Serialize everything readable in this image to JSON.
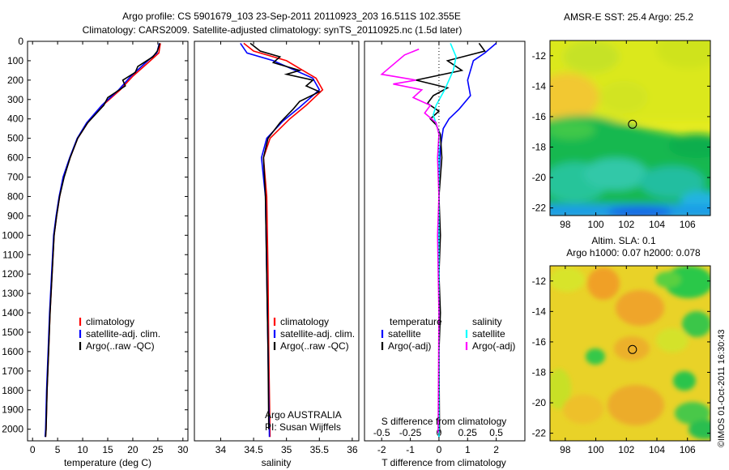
{
  "header": {
    "line1": "Argo profile: CS 5901679_103 23-Sep-2011 20110923_203 16.511S 102.355E",
    "line2": "Climatology: CARS2009. Satellite-adjusted climatology: synTS_20110925.nc (1.5d later)"
  },
  "credit": "©IMOS 01-Oct-2011 16:30:43",
  "colors": {
    "climatology": "#ff0000",
    "satellite": "#0000ff",
    "argo": "#000000",
    "salinity_satellite": "#00ffff",
    "salinity_argo": "#ff00ff"
  },
  "chart_data": [
    {
      "type": "line",
      "xlabel": "temperature (deg C)",
      "ylim": [
        2060,
        0
      ],
      "xlim": [
        -1,
        31
      ],
      "xticks": [
        0,
        5,
        10,
        15,
        20,
        25,
        30
      ],
      "yticks": [
        0,
        100,
        200,
        300,
        400,
        500,
        600,
        700,
        800,
        900,
        1000,
        1100,
        1200,
        1300,
        1400,
        1500,
        1600,
        1700,
        1800,
        1900,
        2000
      ],
      "legend": [
        "climatology",
        "satellite-adj. clim.",
        "Argo(..raw -QC)"
      ],
      "series": [
        {
          "name": "climatology",
          "color": "#ff0000",
          "points": [
            [
              25.5,
              10
            ],
            [
              25.2,
              60
            ],
            [
              23.5,
              100
            ],
            [
              20,
              180
            ],
            [
              17.5,
              250
            ],
            [
              14,
              330
            ],
            [
              11,
              420
            ],
            [
              9,
              500
            ],
            [
              7.5,
              600
            ],
            [
              6.2,
              700
            ],
            [
              5.4,
              800
            ],
            [
              4.8,
              900
            ],
            [
              4.3,
              1000
            ],
            [
              3.9,
              1200
            ],
            [
              3.5,
              1400
            ],
            [
              3.2,
              1600
            ],
            [
              2.9,
              1800
            ],
            [
              2.7,
              2000
            ],
            [
              2.6,
              2040
            ]
          ]
        },
        {
          "name": "satellite-adj. clim.",
          "color": "#0000ff",
          "points": [
            [
              25.3,
              10
            ],
            [
              24.8,
              60
            ],
            [
              23,
              100
            ],
            [
              19.6,
              180
            ],
            [
              17.2,
              250
            ],
            [
              13.8,
              330
            ],
            [
              10.8,
              420
            ],
            [
              8.9,
              500
            ],
            [
              7.4,
              600
            ],
            [
              6.1,
              700
            ],
            [
              5.3,
              800
            ],
            [
              4.7,
              900
            ],
            [
              4.2,
              1000
            ],
            [
              3.8,
              1200
            ],
            [
              3.4,
              1400
            ],
            [
              3.1,
              1600
            ],
            [
              2.8,
              1800
            ],
            [
              2.6,
              2000
            ],
            [
              2.5,
              2040
            ]
          ]
        },
        {
          "name": "Argo(..raw -QC)",
          "color": "#000000",
          "points": [
            [
              25.4,
              10
            ],
            [
              24.9,
              50
            ],
            [
              24,
              80
            ],
            [
              21,
              130
            ],
            [
              20.5,
              160
            ],
            [
              18,
              200
            ],
            [
              18.5,
              230
            ],
            [
              15,
              290
            ],
            [
              14.2,
              330
            ],
            [
              11,
              420
            ],
            [
              9,
              500
            ],
            [
              7.5,
              600
            ],
            [
              6.3,
              700
            ],
            [
              5.4,
              800
            ],
            [
              4.8,
              900
            ],
            [
              4.3,
              1000
            ],
            [
              3.9,
              1200
            ],
            [
              3.5,
              1400
            ],
            [
              3.2,
              1600
            ],
            [
              2.9,
              1800
            ],
            [
              2.7,
              2000
            ],
            [
              2.6,
              2040
            ]
          ]
        }
      ]
    },
    {
      "type": "line",
      "xlabel": "salinity",
      "ylim": [
        2060,
        0
      ],
      "xlim": [
        33.6,
        36.1
      ],
      "xticks": [
        34,
        34.5,
        35,
        35.5,
        36
      ],
      "legend": [
        "climatology",
        "satellite-adj. clim.",
        "Argo(..raw -QC)"
      ],
      "annotation": [
        "Argo AUSTRALIA",
        "PI: Susan Wijffels"
      ],
      "series": [
        {
          "name": "climatology",
          "color": "#ff0000",
          "points": [
            [
              34.35,
              10
            ],
            [
              34.5,
              50
            ],
            [
              35.0,
              100
            ],
            [
              35.45,
              190
            ],
            [
              35.55,
              250
            ],
            [
              35.3,
              330
            ],
            [
              35.05,
              400
            ],
            [
              34.75,
              500
            ],
            [
              34.65,
              600
            ],
            [
              34.7,
              800
            ],
            [
              34.72,
              1200
            ],
            [
              34.73,
              1600
            ],
            [
              34.75,
              2040
            ]
          ]
        },
        {
          "name": "satellite-adj. clim.",
          "color": "#0000ff",
          "points": [
            [
              34.3,
              10
            ],
            [
              34.4,
              60
            ],
            [
              34.8,
              100
            ],
            [
              35.4,
              190
            ],
            [
              35.5,
              250
            ],
            [
              35.2,
              340
            ],
            [
              34.95,
              410
            ],
            [
              34.7,
              500
            ],
            [
              34.62,
              600
            ],
            [
              34.68,
              800
            ],
            [
              34.7,
              1200
            ],
            [
              34.72,
              1600
            ],
            [
              34.74,
              2040
            ]
          ]
        },
        {
          "name": "Argo(..raw -QC)",
          "color": "#000000",
          "points": [
            [
              34.45,
              10
            ],
            [
              34.6,
              50
            ],
            [
              34.9,
              80
            ],
            [
              34.8,
              110
            ],
            [
              35.2,
              150
            ],
            [
              35.0,
              170
            ],
            [
              35.4,
              200
            ],
            [
              35.3,
              230
            ],
            [
              35.5,
              260
            ],
            [
              35.2,
              310
            ],
            [
              35.1,
              350
            ],
            [
              34.9,
              420
            ],
            [
              34.72,
              500
            ],
            [
              34.65,
              600
            ],
            [
              34.68,
              800
            ],
            [
              34.7,
              1200
            ],
            [
              34.72,
              1600
            ],
            [
              34.73,
              2000
            ]
          ]
        }
      ]
    },
    {
      "type": "line",
      "xlabel": "T difference from climatology",
      "xlabel_top": "S difference from climatology",
      "ylim": [
        2060,
        0
      ],
      "xlim": [
        -2.6,
        3.0
      ],
      "xticks": [
        -2,
        -1,
        0,
        1,
        2
      ],
      "xticks_top": [
        "-0.5",
        "-0.25",
        "0",
        "0.25",
        "0.5"
      ],
      "legend": {
        "temperature": [
          "satellite",
          "Argo(-adj)"
        ],
        "salinity": [
          "satellite",
          "Argo(-adj)"
        ]
      },
      "series": [
        {
          "name": "temperature satellite",
          "color": "#0000ff",
          "points": [
            [
              2.0,
              10
            ],
            [
              1.6,
              60
            ],
            [
              1.2,
              100
            ],
            [
              1.0,
              200
            ],
            [
              1.1,
              280
            ],
            [
              0.7,
              350
            ],
            [
              0.35,
              400
            ],
            [
              0.15,
              450
            ],
            [
              0.05,
              550
            ],
            [
              0.0,
              700
            ],
            [
              0.0,
              2040
            ]
          ]
        },
        {
          "name": "temperature Argo(-adj)",
          "color": "#000000",
          "points": [
            [
              1.4,
              10
            ],
            [
              1.6,
              50
            ],
            [
              0.3,
              100
            ],
            [
              0.8,
              150
            ],
            [
              -0.8,
              200
            ],
            [
              0.3,
              240
            ],
            [
              -0.2,
              280
            ],
            [
              -0.4,
              320
            ],
            [
              0.0,
              360
            ],
            [
              -0.3,
              400
            ],
            [
              -0.1,
              430
            ],
            [
              0.05,
              480
            ],
            [
              0.1,
              600
            ],
            [
              0.0,
              800
            ],
            [
              0.05,
              1000
            ],
            [
              0.0,
              1200
            ],
            [
              0.05,
              1400
            ],
            [
              0.0,
              1600
            ],
            [
              0.02,
              2020
            ]
          ]
        },
        {
          "name": "salinity satellite",
          "color": "#00ffff",
          "points": [
            [
              0.4,
              10
            ],
            [
              0.6,
              80
            ],
            [
              0.5,
              150
            ],
            [
              0.2,
              250
            ],
            [
              -0.1,
              330
            ],
            [
              -0.2,
              380
            ],
            [
              0.0,
              470
            ],
            [
              0.0,
              2040
            ]
          ]
        },
        {
          "name": "salinity Argo(-adj)",
          "color": "#ff00ff",
          "points": [
            [
              -0.7,
              40
            ],
            [
              -1.2,
              70
            ],
            [
              -2.0,
              170
            ],
            [
              -0.8,
              200
            ],
            [
              -1.6,
              220
            ],
            [
              -0.6,
              250
            ],
            [
              -0.9,
              290
            ],
            [
              -0.3,
              330
            ],
            [
              -0.5,
              370
            ],
            [
              -0.1,
              420
            ],
            [
              0.0,
              480
            ],
            [
              -0.05,
              600
            ],
            [
              0.0,
              800
            ],
            [
              -0.05,
              1000
            ],
            [
              0.0,
              1400
            ],
            [
              -0.03,
              2020
            ]
          ]
        }
      ]
    },
    {
      "type": "heatmap",
      "title": "AMSR-E SST: 25.4  Argo: 25.2",
      "xlim": [
        97,
        107.5
      ],
      "ylim": [
        -22.5,
        -11
      ],
      "xticks": [
        98,
        100,
        102,
        104,
        106
      ],
      "yticks": [
        -12,
        -14,
        -16,
        -18,
        -20,
        -22
      ],
      "marker": [
        102.4,
        -16.5
      ]
    },
    {
      "type": "heatmap",
      "title": [
        "Altim. SLA: 0.1",
        "Argo h1000: 0.07 h2000: 0.078"
      ],
      "xlim": [
        97,
        107.5
      ],
      "ylim": [
        -22.5,
        -11
      ],
      "xticks": [
        98,
        100,
        102,
        104,
        106
      ],
      "yticks": [
        -12,
        -14,
        -16,
        -18,
        -20,
        -22
      ],
      "marker": [
        102.4,
        -16.5
      ]
    }
  ]
}
